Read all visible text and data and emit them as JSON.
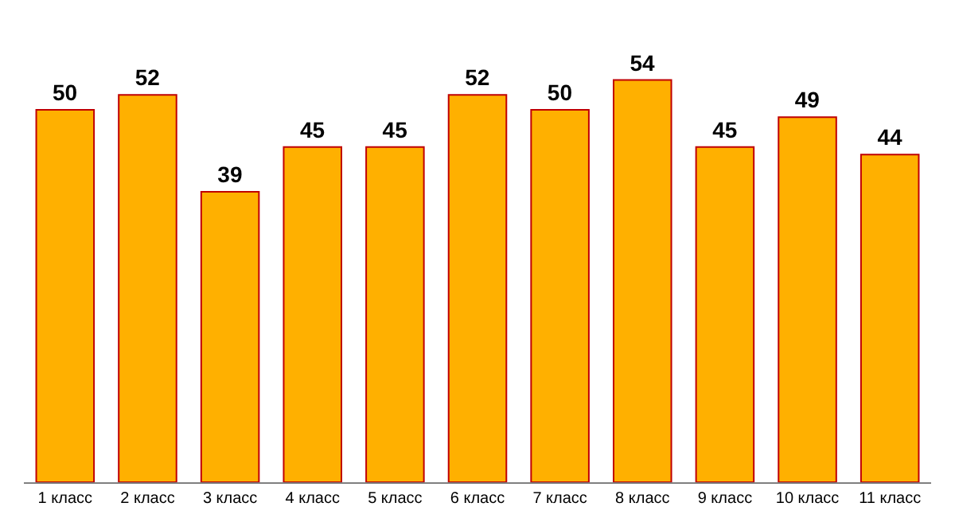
{
  "chart_data": {
    "type": "bar",
    "categories": [
      "1 класс",
      "2 класс",
      "3 класс",
      "4 класс",
      "5 класс",
      "6 класс",
      "7 класс",
      "8 класс",
      "9 класс",
      "10 класс",
      "11 класс"
    ],
    "values": [
      50,
      52,
      39,
      45,
      45,
      52,
      50,
      54,
      45,
      49,
      44
    ],
    "color": "#ffb000",
    "data_labels": true
  }
}
